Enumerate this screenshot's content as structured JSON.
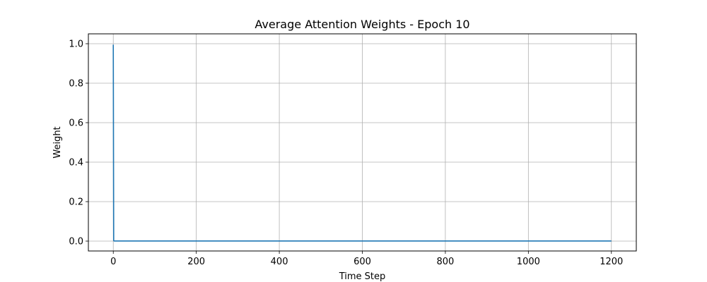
{
  "chart_data": {
    "type": "line",
    "title": "Average Attention Weights - Epoch 10",
    "xlabel": "Time Step",
    "ylabel": "Weight",
    "xlim": [
      -60,
      1260
    ],
    "ylim": [
      -0.05,
      1.05
    ],
    "x_ticks": [
      0,
      200,
      400,
      600,
      800,
      1000,
      1200
    ],
    "x_tick_labels": [
      "0",
      "200",
      "400",
      "600",
      "800",
      "1000",
      "1200"
    ],
    "y_ticks": [
      0.0,
      0.2,
      0.4,
      0.6,
      0.8,
      1.0
    ],
    "y_tick_labels": [
      "0.0",
      "0.2",
      "0.4",
      "0.6",
      "0.8",
      "1.0"
    ],
    "grid": true,
    "series": [
      {
        "color": "#1f77b4",
        "x": [
          0,
          1,
          2,
          1200
        ],
        "y": [
          0.995,
          0.003,
          0.0005,
          0.0005
        ]
      }
    ]
  }
}
